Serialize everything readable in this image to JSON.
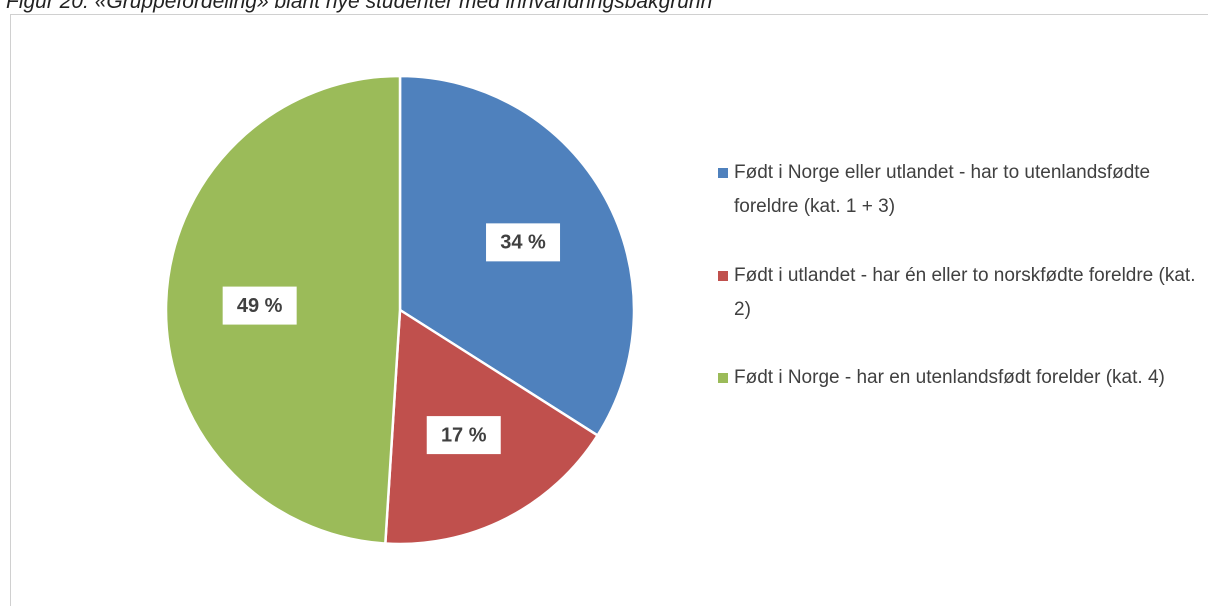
{
  "chart_data": {
    "type": "pie",
    "title": "Figur 20: «Gruppefordeling» blant nye studenter med innvandringsbakgrunn",
    "categories": [
      "Født i Norge eller utlandet - har to utenlandsfødte foreldre (kat. 1 + 3)",
      "Født i utlandet - har  én eller to norskfødte foreldre (kat. 2)",
      "Født i Norge - har en utenlandsfødt forelder (kat. 4)"
    ],
    "values": [
      34,
      17,
      49
    ],
    "value_labels": [
      "34 %",
      "17 %",
      "49 %"
    ],
    "colors": [
      "#4f81bd",
      "#c0504d",
      "#9bbb59"
    ],
    "legend": "right"
  }
}
